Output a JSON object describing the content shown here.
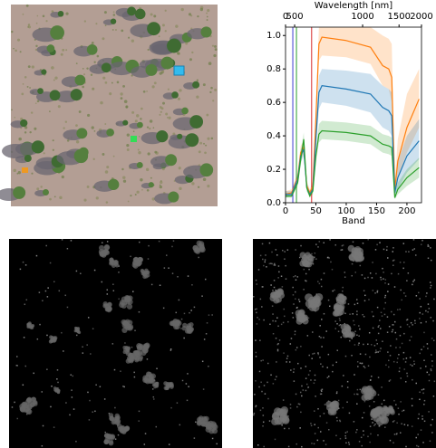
{
  "chart_data": {
    "type": "line",
    "title": "Wavelength [nm]",
    "xlabel": "Band",
    "x": [
      0,
      10,
      20,
      25,
      30,
      35,
      40,
      45,
      50,
      55,
      60,
      100,
      140,
      160,
      170,
      175,
      180,
      185,
      200,
      220
    ],
    "xlim": [
      0,
      224
    ],
    "xticks": [
      0,
      50,
      100,
      150,
      200
    ],
    "ylim": [
      0,
      1.05
    ],
    "yticks": [
      {
        "value": 0,
        "label": "0.0"
      },
      {
        "value": 0.2,
        "label": "0.2"
      },
      {
        "value": 0.4,
        "label": "0.4"
      },
      {
        "value": 0.6,
        "label": "0.6"
      },
      {
        "value": 0.8,
        "label": "0.8"
      },
      {
        "value": 1.0,
        "label": "1.0"
      }
    ],
    "x2ticks": [
      {
        "value": 0,
        "label": "0"
      },
      {
        "value": 15,
        "label": "500"
      },
      {
        "value": 127,
        "label": "1000"
      },
      {
        "value": 187,
        "label": "1500"
      },
      {
        "value": 224,
        "label": "2000"
      }
    ],
    "band_markers": [
      {
        "value": 12,
        "color": "#3a3ad0"
      },
      {
        "value": 18,
        "color": "#2ca02c"
      },
      {
        "value": 43,
        "color": "#d62728"
      }
    ],
    "series": [
      {
        "color": "#ff7f0e",
        "values": [
          0.05,
          0.06,
          0.15,
          0.3,
          0.33,
          0.1,
          0.06,
          0.1,
          0.5,
          0.95,
          0.99,
          0.97,
          0.93,
          0.82,
          0.8,
          0.75,
          0.08,
          0.25,
          0.45,
          0.62
        ],
        "upper": [
          0.07,
          0.08,
          0.18,
          0.34,
          0.37,
          0.13,
          0.08,
          0.13,
          0.58,
          1.05,
          1.05,
          1.05,
          1.05,
          1.0,
          0.98,
          0.95,
          0.12,
          0.38,
          0.65,
          0.8
        ],
        "lower": [
          0.04,
          0.05,
          0.12,
          0.26,
          0.29,
          0.08,
          0.05,
          0.08,
          0.45,
          0.85,
          0.88,
          0.87,
          0.83,
          0.7,
          0.68,
          0.6,
          0.05,
          0.15,
          0.3,
          0.45
        ]
      },
      {
        "color": "#1f77b4",
        "values": [
          0.05,
          0.05,
          0.14,
          0.28,
          0.32,
          0.09,
          0.05,
          0.08,
          0.38,
          0.66,
          0.7,
          0.68,
          0.65,
          0.57,
          0.55,
          0.52,
          0.06,
          0.15,
          0.28,
          0.37
        ],
        "upper": [
          0.07,
          0.07,
          0.17,
          0.32,
          0.36,
          0.12,
          0.07,
          0.11,
          0.45,
          0.76,
          0.8,
          0.79,
          0.77,
          0.7,
          0.68,
          0.66,
          0.1,
          0.25,
          0.4,
          0.5
        ],
        "lower": [
          0.03,
          0.04,
          0.11,
          0.24,
          0.28,
          0.07,
          0.04,
          0.06,
          0.32,
          0.56,
          0.6,
          0.58,
          0.54,
          0.45,
          0.43,
          0.4,
          0.04,
          0.08,
          0.18,
          0.26
        ]
      },
      {
        "color": "#2ca02c",
        "values": [
          0.04,
          0.04,
          0.12,
          0.26,
          0.38,
          0.09,
          0.04,
          0.07,
          0.28,
          0.41,
          0.43,
          0.42,
          0.4,
          0.35,
          0.34,
          0.33,
          0.03,
          0.08,
          0.15,
          0.21
        ],
        "upper": [
          0.06,
          0.06,
          0.15,
          0.3,
          0.42,
          0.12,
          0.06,
          0.1,
          0.32,
          0.47,
          0.49,
          0.48,
          0.46,
          0.41,
          0.4,
          0.39,
          0.06,
          0.12,
          0.2,
          0.27
        ],
        "lower": [
          0.03,
          0.03,
          0.1,
          0.22,
          0.34,
          0.07,
          0.03,
          0.05,
          0.24,
          0.36,
          0.38,
          0.37,
          0.35,
          0.3,
          0.29,
          0.28,
          0.02,
          0.05,
          0.1,
          0.15
        ]
      }
    ]
  }
}
